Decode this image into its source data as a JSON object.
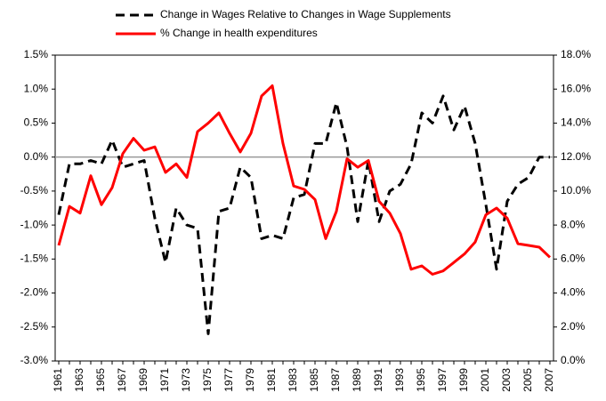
{
  "chart_data": {
    "type": "line",
    "categories": [
      "1961",
      null,
      "1963",
      null,
      "1965",
      null,
      "1967",
      null,
      "1969",
      null,
      "1971",
      null,
      "1973",
      null,
      "1975",
      null,
      "1977",
      null,
      "1979",
      null,
      "1981",
      null,
      "1983",
      null,
      "1985",
      null,
      "1987",
      null,
      "1989",
      null,
      "1991",
      null,
      "1993",
      null,
      "1995",
      null,
      "1997",
      null,
      "1999",
      null,
      "2001",
      null,
      "2003",
      null,
      "2005",
      null,
      "2007"
    ],
    "series": [
      {
        "name": "Change in Wages Relative to Changes in Wage Supplements",
        "color": "#000000",
        "dash": true,
        "values": [
          -0.85,
          -0.1,
          -0.1,
          -0.05,
          -0.1,
          0.25,
          -0.15,
          -0.1,
          -0.05,
          -0.9,
          -1.55,
          -0.75,
          -1.0,
          -1.05,
          -2.6,
          -0.8,
          -0.75,
          -0.15,
          -0.3,
          -1.2,
          -1.15,
          -1.2,
          -0.6,
          -0.55,
          0.2,
          0.2,
          0.8,
          0.15,
          -0.95,
          -0.05,
          -0.95,
          -0.5,
          -0.4,
          -0.1,
          0.65,
          0.5,
          0.9,
          0.4,
          0.75,
          0.2,
          -0.7,
          -1.65,
          -0.65,
          -0.4,
          -0.3,
          0.0,
          0.0
        ]
      },
      {
        "name": "% Change in health expenditures",
        "color": "#ff0000",
        "axis": "y2",
        "values": [
          6.8,
          9.1,
          8.7,
          10.9,
          9.2,
          10.2,
          12.2,
          13.1,
          12.4,
          12.6,
          11.1,
          11.6,
          10.8,
          13.5,
          14.0,
          14.6,
          13.4,
          12.3,
          13.4,
          15.6,
          16.2,
          12.8,
          10.3,
          10.1,
          9.5,
          7.2,
          8.8,
          11.9,
          11.4,
          11.8,
          9.4,
          8.7,
          7.5,
          5.4,
          5.6,
          5.1,
          5.3,
          5.8,
          6.3,
          7.0,
          8.6,
          9.0,
          8.4,
          6.9,
          6.8,
          6.7,
          6.1
        ]
      }
    ],
    "ylim": [
      -3.0,
      1.5
    ],
    "yticks": [
      {
        "value": -3.0,
        "label": "-3.0%"
      },
      {
        "value": -2.5,
        "label": "-2.5%"
      },
      {
        "value": -2.0,
        "label": "-2.0%"
      },
      {
        "value": -1.5,
        "label": "-1.5%"
      },
      {
        "value": -1.0,
        "label": "-1.0%"
      },
      {
        "value": -0.5,
        "label": "-0.5%"
      },
      {
        "value": 0.0,
        "label": "0.0%"
      },
      {
        "value": 0.5,
        "label": "0.5%"
      },
      {
        "value": 1.0,
        "label": "1.0%"
      },
      {
        "value": 1.5,
        "label": "1.5%"
      }
    ],
    "y2lim": [
      0,
      18
    ],
    "y2ticks": [
      {
        "value": 0,
        "label": "0.0%"
      },
      {
        "value": 2,
        "label": "2.0%"
      },
      {
        "value": 4,
        "label": "4.0%"
      },
      {
        "value": 6,
        "label": "6.0%"
      },
      {
        "value": 8,
        "label": "8.0%"
      },
      {
        "value": 10,
        "label": "10.0%"
      },
      {
        "value": 12,
        "label": "12.0%"
      },
      {
        "value": 14,
        "label": "14.0%"
      },
      {
        "value": 16,
        "label": "16.0%"
      },
      {
        "value": 18,
        "label": "18.0%"
      }
    ],
    "legend": "top"
  }
}
